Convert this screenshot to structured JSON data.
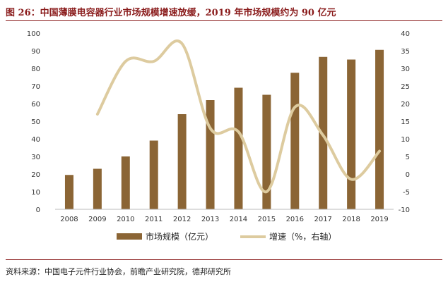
{
  "figure_title": "图 26：中国薄膜电容器行业市场规模增速放缓，2019 年市场规模约为 90 亿元",
  "source": "资料来源：中国电子元件行业协会，前瞻产业研究院，德邦研究所",
  "colors": {
    "bar": "#8b6535",
    "line": "#ddcb9f",
    "title": "#8a1c1c"
  },
  "chart_data": {
    "type": "bar+line",
    "categories": [
      "2008",
      "2009",
      "2010",
      "2011",
      "2012",
      "2013",
      "2014",
      "2015",
      "2016",
      "2017",
      "2018",
      "2019"
    ],
    "series": [
      {
        "name": "市场规模（亿元）",
        "type": "bar",
        "axis": "left",
        "values": [
          19.5,
          23,
          30,
          39,
          54,
          62,
          69,
          65,
          77.5,
          86.5,
          85,
          90.5
        ]
      },
      {
        "name": "增速（%，右轴）",
        "type": "line",
        "axis": "right",
        "values": [
          null,
          17,
          32,
          32,
          37,
          13,
          12,
          -5,
          19,
          11,
          -1.5,
          6.5
        ]
      }
    ],
    "y_left": {
      "ticks": [
        "0",
        "10",
        "20",
        "30",
        "40",
        "50",
        "60",
        "70",
        "80",
        "90",
        "100"
      ],
      "lim": [
        0,
        100
      ]
    },
    "y_right": {
      "ticks": [
        "-10",
        "-5",
        "0",
        "5",
        "10",
        "15",
        "20",
        "25",
        "30",
        "35",
        "40"
      ],
      "lim": [
        -10,
        40
      ]
    },
    "grid": false,
    "legend_position": "bottom"
  }
}
